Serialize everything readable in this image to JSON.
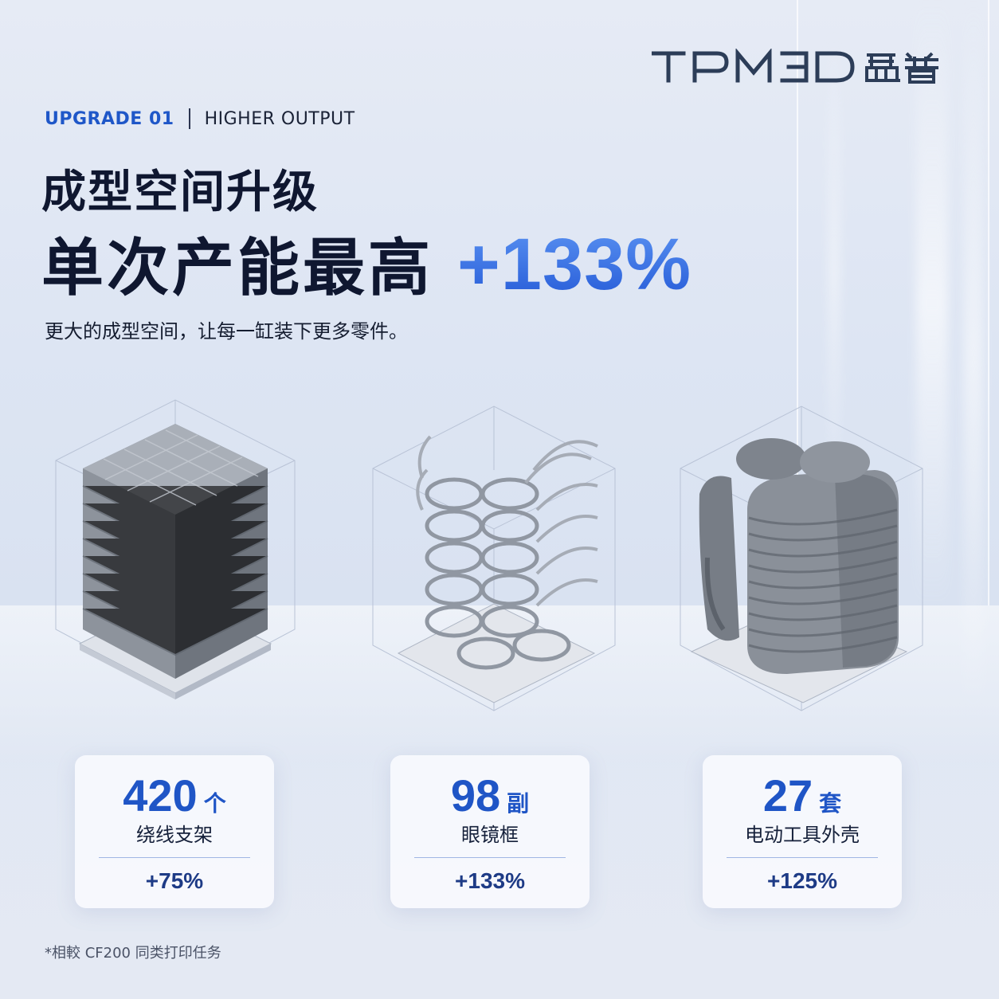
{
  "brand": {
    "logo_text": "TPM3D盈普"
  },
  "header": {
    "tag": "UPGRADE 01",
    "subtitle": "HIGHER OUTPUT"
  },
  "headline": {
    "line1": "成型空间升级",
    "line2": "单次产能最高",
    "highlight": "+133%"
  },
  "description": "更大的成型空间，让每一缸装下更多零件。",
  "stats": [
    {
      "value": "420",
      "unit": "个",
      "label": "绕线支架",
      "delta": "+75%"
    },
    {
      "value": "98",
      "unit": "副",
      "label": "眼镜框",
      "delta": "+133%"
    },
    {
      "value": "27",
      "unit": "套",
      "label": "电动工具外壳",
      "delta": "+125%"
    }
  ],
  "footnote": "*相較 CF200 同类打印任务",
  "colors": {
    "accent": "#1f55c6",
    "highlight_top": "#5b93f2",
    "highlight_bottom": "#2358d6",
    "text": "#0f1730"
  }
}
